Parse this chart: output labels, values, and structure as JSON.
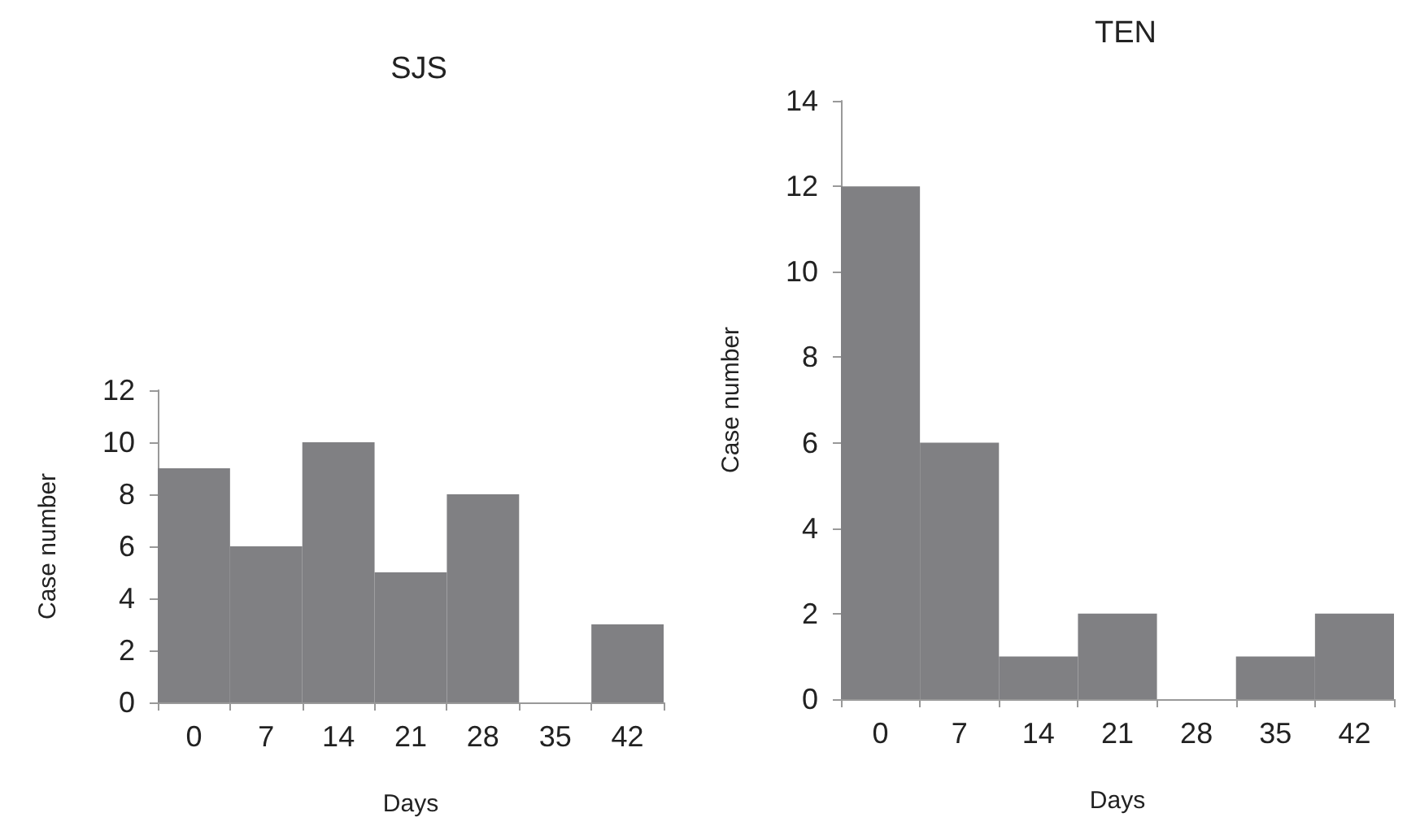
{
  "chart_data": [
    {
      "type": "bar",
      "title": "SJS",
      "xlabel": "Days",
      "ylabel": "Case number",
      "categories": [
        "0",
        "7",
        "14",
        "21",
        "28",
        "35",
        "42"
      ],
      "values": [
        9,
        6,
        10,
        5,
        8,
        0,
        3
      ],
      "color": "#808083",
      "ylim": [
        0,
        12
      ],
      "yticks": [
        0,
        2,
        4,
        6,
        8,
        10,
        12
      ],
      "grid": false
    },
    {
      "type": "bar",
      "title": "TEN",
      "xlabel": "Days",
      "ylabel": "Case number",
      "categories": [
        "0",
        "7",
        "14",
        "21",
        "28",
        "35",
        "42"
      ],
      "values": [
        12,
        6,
        1,
        2,
        0,
        1,
        2
      ],
      "color": "#808083",
      "ylim": [
        0,
        14
      ],
      "yticks": [
        0,
        2,
        4,
        6,
        8,
        10,
        12,
        14
      ],
      "grid": false
    }
  ]
}
